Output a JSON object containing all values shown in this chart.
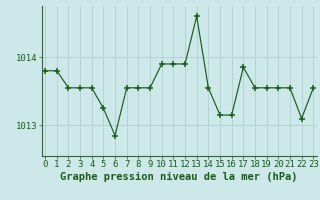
{
  "hours": [
    0,
    1,
    2,
    3,
    4,
    5,
    6,
    7,
    8,
    9,
    10,
    11,
    12,
    13,
    14,
    15,
    16,
    17,
    18,
    19,
    20,
    21,
    22,
    23
  ],
  "pressure": [
    1013.8,
    1013.8,
    1013.55,
    1013.55,
    1013.55,
    1013.25,
    1012.85,
    1013.55,
    1013.55,
    1013.55,
    1013.9,
    1013.9,
    1013.9,
    1014.6,
    1013.55,
    1013.15,
    1013.15,
    1013.85,
    1013.55,
    1013.55,
    1013.55,
    1013.55,
    1013.1,
    1013.55
  ],
  "yticks": [
    1013,
    1014
  ],
  "xlabel": "Graphe pression niveau de la mer (hPa)",
  "line_color": "#1a5c1a",
  "marker": "+",
  "bg_color": "#cce8e8",
  "grid_color": "#aacccc",
  "axis_color": "#336633",
  "text_color": "#1a5c1a",
  "ymin": 1012.55,
  "ymax": 1014.75,
  "tick_fontsize": 6.5,
  "xlabel_fontsize": 7.5
}
